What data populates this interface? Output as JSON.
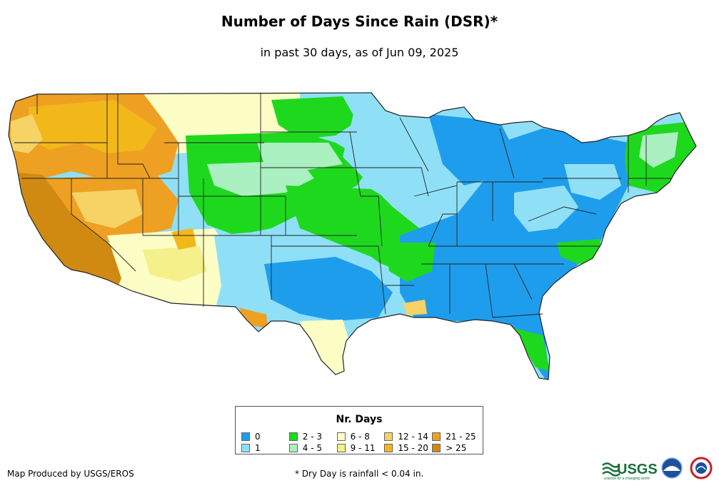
{
  "title": "Number of Days Since Rain (DSR)*",
  "subtitle": "in past 30 days, as of Jun 09, 2025",
  "legend": {
    "title": "Nr. Days",
    "items": [
      {
        "label": "0",
        "color": "#1f9ded"
      },
      {
        "label": "1",
        "color": "#8fe0f7"
      },
      {
        "label": "2 - 3",
        "color": "#1ed81e"
      },
      {
        "label": "4 - 5",
        "color": "#aaf0c0"
      },
      {
        "label": "6 - 8",
        "color": "#fdfdc6"
      },
      {
        "label": "9 - 11",
        "color": "#f4f08a"
      },
      {
        "label": "12 - 14",
        "color": "#f7d265"
      },
      {
        "label": "15 - 20",
        "color": "#f2b81a"
      },
      {
        "label": "21 - 25",
        "color": "#eea023"
      },
      {
        "label": "> 25",
        "color": "#d08a12"
      }
    ]
  },
  "credit": "Map Produced by USGS/EROS",
  "footnote": "* Dry Day is rainfall < 0.04 in.",
  "logos": {
    "usgs": "USGS",
    "usgs_tagline": "science for a changing world"
  }
}
